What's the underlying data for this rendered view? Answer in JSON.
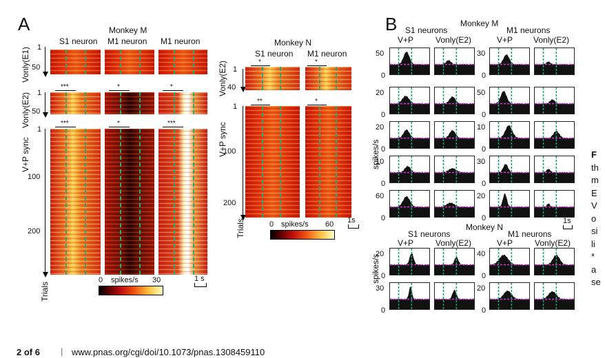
{
  "panel_a": {
    "letter": "A",
    "monkey_m": "Monkey M",
    "monkey_n": "Monkey N",
    "col_s1": "S1 neuron",
    "col_m1": "M1 neuron",
    "col_m1_b": "M1 neuron",
    "col_s1_n": "S1 neuron",
    "col_m1_n": "M1 neuron",
    "row_vonly_e1": "Vonly(E1)",
    "row_vonly_e2": "Vonly(E2)",
    "row_vp_sync": "V+P sync",
    "row_vonly_e2_n": "Vonly(E2)",
    "row_vp_sync_n": "V+P sync",
    "trials": "Trials",
    "trials_n": "Trials",
    "ticks_m_e1": [
      "1",
      "50"
    ],
    "ticks_m_e2": [
      "1",
      "50"
    ],
    "ticks_m_sync": [
      "1",
      "100",
      "200"
    ],
    "ticks_n_e2": [
      "1",
      "40"
    ],
    "ticks_n_sync": [
      "1",
      "100",
      "200"
    ],
    "sig_m_e2": [
      "***",
      "*",
      "*"
    ],
    "sig_m_sync": [
      "***",
      "*",
      "***"
    ],
    "sig_n_e2": [
      "*",
      "*"
    ],
    "sig_n_sync": [
      "**",
      "*"
    ],
    "colorbar_m": {
      "min": "0",
      "label": "spikes/s",
      "max": "30"
    },
    "colorbar_n": {
      "min": "0",
      "label": "spikes/s",
      "max": "60"
    },
    "scale_m": "1 s",
    "scale_n": "1s"
  },
  "panel_b": {
    "letter": "B",
    "monkey_m": "Monkey M",
    "monkey_n": "Monkey N",
    "s1_neurons": "S1 neurons",
    "m1_neurons": "M1 neurons",
    "s1_neurons_n": "S1 neurons",
    "m1_neurons_n": "M1 neurons",
    "vp": "V+P",
    "vonly": "Vonly(E2)",
    "vp2": "V+P",
    "vonly2": "Vonly(E2)",
    "vp_n": "V+P",
    "vonly_n": "Vonly(E2)",
    "vp_n2": "V+P",
    "vonly_n2": "Vonly(E2)",
    "ylabel_m": "spikes/s",
    "ylabel_n": "spikes/s",
    "scale": "1s",
    "left_ticks_m": [
      [
        "50",
        "0"
      ],
      [
        "20",
        "0"
      ],
      [
        "20",
        "0"
      ],
      [
        "10",
        "0"
      ],
      [
        "60",
        "0"
      ]
    ],
    "right_ticks_m": [
      [
        "30",
        "0"
      ],
      [
        "50",
        "0"
      ],
      [
        "10",
        "0"
      ],
      [
        "30",
        "0"
      ],
      [
        "20",
        "0"
      ]
    ],
    "left_ticks_n": [
      [
        "20",
        "0"
      ],
      [
        "30",
        "0"
      ]
    ],
    "right_ticks_n": [
      [
        "40",
        "0"
      ],
      [
        "20",
        "0"
      ]
    ],
    "colors": {
      "baseline": "#d030d0",
      "marker": "#20a070"
    }
  },
  "side_caption": [
    "F",
    "th",
    "m",
    "E",
    "V",
    "o",
    "si",
    "li",
    "*",
    "a",
    "se"
  ],
  "footer": {
    "page": "2 of 6",
    "sep": "|",
    "url": "www.pnas.org/cgi/doi/10.1073/pnas.1308459110"
  }
}
